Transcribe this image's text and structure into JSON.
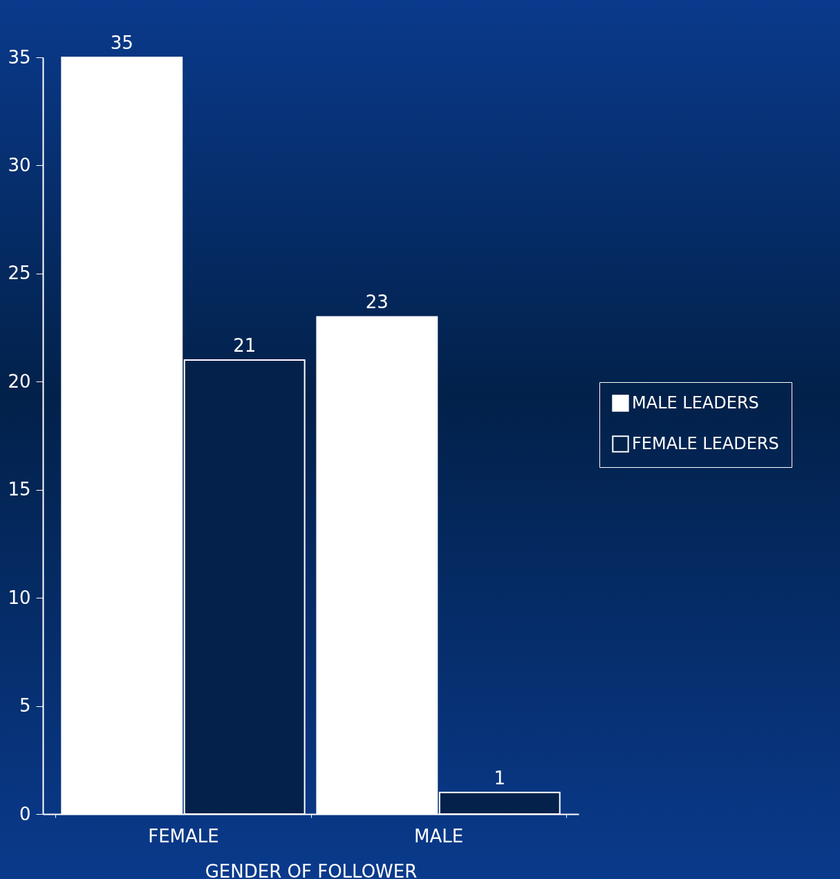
{
  "chart_data": {
    "type": "bar",
    "xlabel": "GENDER OF FOLLOWER",
    "categories": [
      "FEMALE",
      "MALE"
    ],
    "series": [
      {
        "name": "MALE LEADERS",
        "color": "#ffffff",
        "values": [
          35,
          23
        ]
      },
      {
        "name": "FEMALE LEADERS",
        "color": "#ffffff",
        "values": [
          21,
          1
        ]
      }
    ],
    "ylim": [
      0,
      35
    ],
    "yticks": [
      0,
      5,
      10,
      15,
      20,
      25,
      30,
      35
    ],
    "data_labels": true,
    "legend": "right",
    "grid": false
  }
}
